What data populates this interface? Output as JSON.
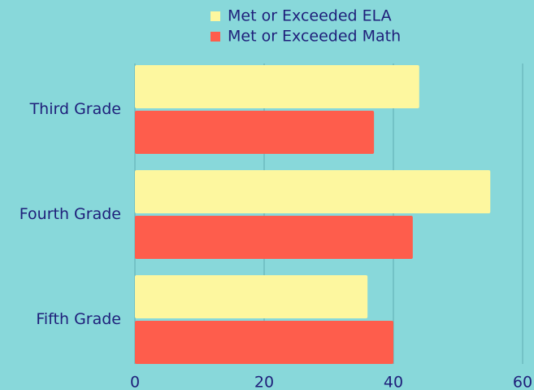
{
  "colors": {
    "background": "#88d8da",
    "gridline": "#66b4b8",
    "text": "#1f1f7a",
    "series": [
      "#fdf79f",
      "#fe5d4c"
    ]
  },
  "chart_data": {
    "type": "bar",
    "orientation": "horizontal",
    "categories": [
      "Third Grade",
      "Fourth Grade",
      "Fifth Grade"
    ],
    "series": [
      {
        "name": "Met or Exceeded ELA",
        "values": [
          44,
          55,
          36
        ]
      },
      {
        "name": "Met or Exceeded Math",
        "values": [
          37,
          43,
          40
        ]
      }
    ],
    "xlim": [
      0,
      60
    ],
    "x_ticks": [
      0,
      20,
      40,
      60
    ],
    "x_tick_labels": [
      "0",
      "20",
      "40",
      "60"
    ],
    "grid": true,
    "legend_position": "top"
  }
}
